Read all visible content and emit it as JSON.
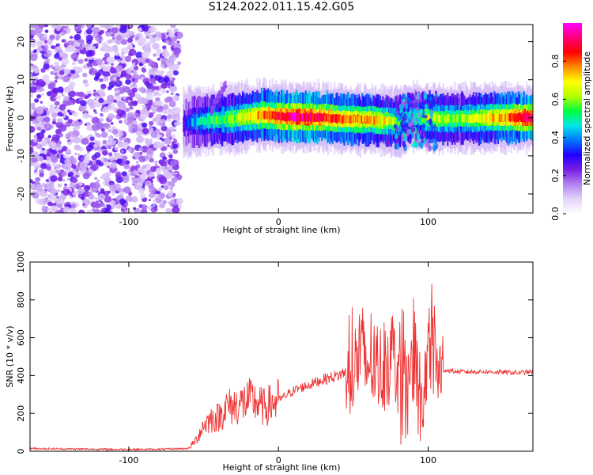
{
  "title": "S124.2022.011.15.42.G05",
  "chart_data": [
    {
      "type": "heatmap",
      "xlabel": "Height of straight line (km)",
      "ylabel": "Frequency (Hz)",
      "xlim": [
        -166,
        170
      ],
      "ylim": [
        -25,
        24.5
      ],
      "xticks": [
        -100,
        0,
        100
      ],
      "yticks": [
        -20,
        -10,
        0,
        10,
        20
      ],
      "colorbar": {
        "label": "Normalized spectral amplitude",
        "range": [
          0,
          1
        ],
        "ticks": [
          0.0,
          0.2,
          0.4,
          0.6,
          0.8
        ],
        "colormap": [
          "#ffffff",
          "#e4d4fa",
          "#b383f0",
          "#7a1ee6",
          "#2000ff",
          "#0078ff",
          "#00e6e6",
          "#00ff40",
          "#b4ff00",
          "#ffff00",
          "#ff8c00",
          "#ff0000",
          "#ff0078",
          "#ff00ff"
        ]
      },
      "noise_region": {
        "x_from": -166,
        "x_to": -66
      },
      "ridge": [
        {
          "x": -64,
          "f": -1.5,
          "amp": 0.25
        },
        {
          "x": -58,
          "f": -1.0,
          "amp": 0.4
        },
        {
          "x": -50,
          "f": -0.8,
          "amp": 0.5
        },
        {
          "x": -40,
          "f": -0.5,
          "amp": 0.55
        },
        {
          "x": -30,
          "f": -0.2,
          "amp": 0.6
        },
        {
          "x": -20,
          "f": 0.3,
          "amp": 0.7
        },
        {
          "x": -10,
          "f": 0.8,
          "amp": 0.8
        },
        {
          "x": 0,
          "f": 0.4,
          "amp": 0.85
        },
        {
          "x": 10,
          "f": 0.2,
          "amp": 0.95
        },
        {
          "x": 20,
          "f": 0.2,
          "amp": 0.9
        },
        {
          "x": 30,
          "f": 0.1,
          "amp": 0.85
        },
        {
          "x": 40,
          "f": -0.3,
          "amp": 0.8
        },
        {
          "x": 50,
          "f": -0.4,
          "amp": 0.75
        },
        {
          "x": 60,
          "f": -0.5,
          "amp": 0.75
        },
        {
          "x": 70,
          "f": -0.7,
          "amp": 0.7
        },
        {
          "x": 80,
          "f": -1.2,
          "amp": 0.55
        },
        {
          "x": 88,
          "f": 0.5,
          "amp": 0.45
        },
        {
          "x": 95,
          "f": 0.2,
          "amp": 0.55
        },
        {
          "x": 100,
          "f": 0.0,
          "amp": 0.65
        },
        {
          "x": 110,
          "f": -0.3,
          "amp": 0.6
        },
        {
          "x": 125,
          "f": -0.2,
          "amp": 0.6
        },
        {
          "x": 140,
          "f": 0.0,
          "amp": 0.7
        },
        {
          "x": 155,
          "f": 0.1,
          "amp": 0.8
        },
        {
          "x": 165,
          "f": 0.1,
          "amp": 0.95
        },
        {
          "x": 170,
          "f": 0.1,
          "amp": 0.9
        }
      ]
    },
    {
      "type": "line",
      "xlabel": "Height of straight line (km)",
      "ylabel": "SNR (10 * v/v)",
      "xlim": [
        -166,
        170
      ],
      "ylim": [
        0,
        1000
      ],
      "xticks": [
        -100,
        0,
        100
      ],
      "yticks": [
        0,
        200,
        400,
        600,
        800,
        1000
      ],
      "color": "#ee3333",
      "series": [
        {
          "x": [
            -166,
            -140,
            -110,
            -80,
            -60,
            -55,
            -50,
            -45,
            -40,
            -35,
            -30,
            -25,
            -20,
            -15,
            -10,
            0,
            10,
            20,
            30,
            40,
            45,
            50,
            55,
            58,
            62,
            65,
            70,
            75,
            80,
            85,
            88,
            90,
            93,
            95,
            97,
            100,
            103,
            106,
            108,
            110,
            120,
            140,
            160,
            170
          ],
          "y": [
            15,
            12,
            10,
            10,
            15,
            60,
            140,
            170,
            180,
            230,
            240,
            250,
            270,
            260,
            230,
            270,
            320,
            350,
            380,
            400,
            420,
            410,
            560,
            430,
            500,
            420,
            450,
            520,
            440,
            560,
            380,
            540,
            430,
            300,
            270,
            550,
            580,
            400,
            460,
            430,
            420,
            420,
            415,
            420
          ]
        }
      ]
    }
  ]
}
